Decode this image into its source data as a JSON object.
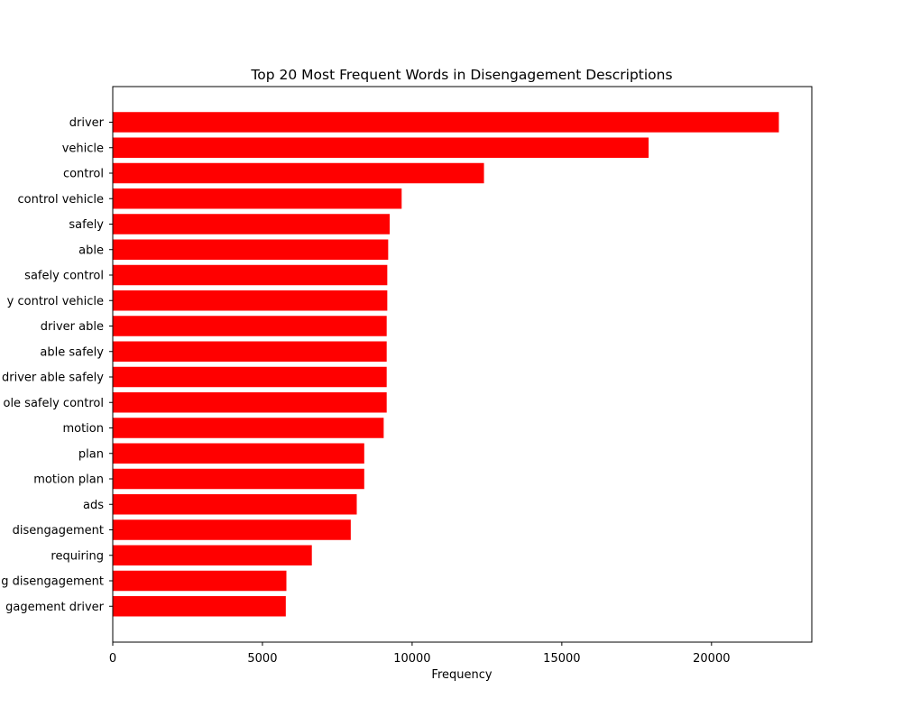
{
  "chart_data": {
    "type": "bar",
    "orientation": "horizontal",
    "title": "Top 20 Most Frequent Words in Disengagement Descriptions",
    "xlabel": "Frequency",
    "ylabel": "",
    "xlim": [
      0,
      23350
    ],
    "xticks": [
      0,
      5000,
      10000,
      15000,
      20000
    ],
    "grid": false,
    "bar_color": "#ff0000",
    "categories": [
      "driver",
      "vehicle",
      "control",
      "control vehicle",
      "safely",
      "able",
      "safely control",
      "y control vehicle",
      "driver able",
      "able safely",
      "driver able safely",
      "ole safely control",
      "motion",
      "plan",
      "motion plan",
      "ads",
      "disengagement",
      "requiring",
      "g disengagement",
      "gagement driver"
    ],
    "values": [
      22250,
      17900,
      12400,
      9650,
      9250,
      9200,
      9170,
      9170,
      9150,
      9150,
      9150,
      9150,
      9050,
      8400,
      8400,
      8150,
      7950,
      6650,
      5800,
      5780
    ]
  }
}
